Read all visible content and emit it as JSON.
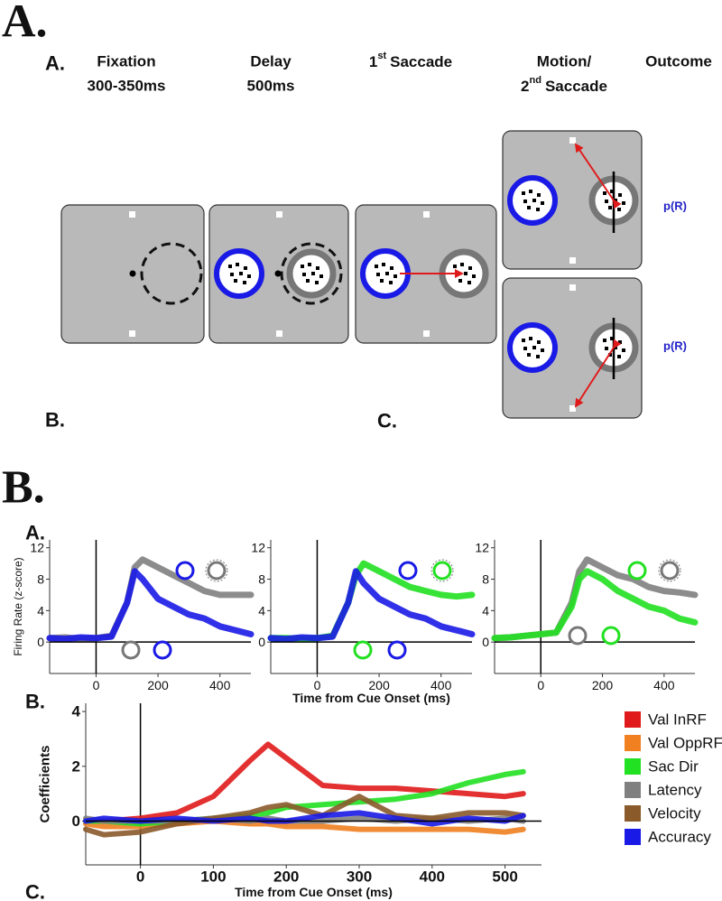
{
  "figure_labels": [
    "A.",
    "B."
  ],
  "task_diagram": {
    "panel_label": "A.",
    "epochs": [
      {
        "title": "Fixation",
        "subtitle": "300-350ms"
      },
      {
        "title": "Delay",
        "subtitle": "500ms"
      },
      {
        "ordinal": "1",
        "suffix": "st",
        "title": "Saccade"
      },
      {
        "title": "Motion/",
        "ordinal": "2",
        "suffix": "nd",
        "subtitle": "Saccade"
      },
      {
        "title": "Outcome"
      }
    ],
    "outcome_labels": [
      "p(R)",
      "p(R)"
    ],
    "sub_labels": [
      "B.",
      "C."
    ]
  },
  "results": {
    "panel_labels": [
      "A.",
      "B.",
      "C."
    ]
  },
  "chart_data": [
    {
      "type": "line",
      "ylabel": "Firing Rate (z-score)",
      "x": [
        -150,
        -100,
        -50,
        0,
        50,
        100,
        125,
        150,
        200,
        250,
        300,
        350,
        400,
        450,
        500
      ],
      "series": [
        {
          "color": "#808080",
          "values": [
            0.5,
            0.6,
            0.4,
            0.5,
            0.8,
            5,
            9.5,
            10.5,
            9.5,
            8.5,
            7.5,
            6.5,
            6,
            6,
            6
          ]
        },
        {
          "color": "#1a1ae6",
          "values": [
            0.5,
            0.4,
            0.6,
            0.5,
            0.7,
            5,
            9,
            8,
            5.5,
            4.5,
            3.5,
            3,
            2,
            1.5,
            1
          ]
        }
      ],
      "xlim": [
        -150,
        500
      ],
      "ylim": [
        -4,
        13
      ],
      "xticks": [
        0,
        200,
        400
      ],
      "yticks": [
        0,
        4,
        8,
        12
      ]
    },
    {
      "type": "line",
      "xlabel": "Time from Cue Onset (ms)",
      "x": [
        -150,
        -100,
        -50,
        0,
        50,
        100,
        125,
        150,
        200,
        250,
        300,
        350,
        400,
        450,
        500
      ],
      "series": [
        {
          "color": "#22e022",
          "values": [
            0.5,
            0.5,
            0.4,
            0.5,
            0.8,
            5,
            8.5,
            10,
            9,
            8,
            7,
            6.5,
            6,
            5.8,
            6
          ]
        },
        {
          "color": "#1a1ae6",
          "values": [
            0.5,
            0.4,
            0.6,
            0.5,
            0.7,
            5,
            9,
            7.5,
            5.5,
            4.5,
            3.5,
            3,
            2,
            1.5,
            1
          ]
        }
      ],
      "xlim": [
        -150,
        500
      ],
      "ylim": [
        -4,
        13
      ],
      "xticks": [
        0,
        200,
        400
      ],
      "yticks": [
        0,
        4,
        8,
        12
      ]
    },
    {
      "type": "line",
      "x": [
        -150,
        -100,
        -50,
        0,
        50,
        100,
        125,
        150,
        200,
        250,
        300,
        350,
        400,
        450,
        500
      ],
      "series": [
        {
          "color": "#808080",
          "values": [
            0.5,
            0.6,
            0.8,
            1,
            1.2,
            5,
            9,
            10.5,
            9.5,
            8.5,
            8,
            7,
            6.5,
            6.3,
            6
          ]
        },
        {
          "color": "#22e022",
          "values": [
            0.5,
            0.6,
            0.8,
            1,
            1.2,
            4.5,
            8,
            9,
            8,
            6.5,
            5.5,
            4.5,
            4,
            3,
            2.5
          ]
        }
      ],
      "xlim": [
        -150,
        500
      ],
      "ylim": [
        -4,
        13
      ],
      "xticks": [
        0,
        200,
        400
      ],
      "yticks": [
        0,
        4,
        8,
        12
      ]
    },
    {
      "type": "line",
      "ylabel": "Coefficients",
      "xlabel": "Time from Cue Onset (ms)",
      "legend": "right",
      "x": [
        -75,
        -50,
        0,
        50,
        100,
        150,
        175,
        200,
        250,
        300,
        350,
        400,
        450,
        500,
        525
      ],
      "series": [
        {
          "name": "Val InRF",
          "color": "#e01a1a",
          "values": [
            0,
            0,
            0.1,
            0.3,
            0.9,
            2.2,
            2.8,
            2.3,
            1.3,
            1.2,
            1.2,
            1.1,
            1,
            0.9,
            1
          ]
        },
        {
          "name": "Val OppRF",
          "color": "#f08020",
          "values": [
            -0.1,
            -0.2,
            -0.2,
            -0.1,
            0,
            -0.1,
            -0.1,
            -0.2,
            -0.2,
            -0.3,
            -0.3,
            -0.3,
            -0.3,
            -0.4,
            -0.3
          ]
        },
        {
          "name": "Sac Dir",
          "color": "#22e022",
          "values": [
            0,
            0,
            -0.1,
            0,
            0.1,
            0.2,
            0.3,
            0.5,
            0.6,
            0.7,
            0.8,
            1,
            1.4,
            1.7,
            1.8
          ]
        },
        {
          "name": "Latency",
          "color": "#808080",
          "values": [
            0.1,
            0,
            0,
            0,
            0.1,
            0,
            0.1,
            0,
            0,
            0.1,
            0,
            0.1,
            0,
            0.1,
            0
          ]
        },
        {
          "name": "Velocity",
          "color": "#8b5a2b",
          "values": [
            -0.3,
            -0.5,
            -0.4,
            -0.1,
            0.1,
            0.3,
            0.5,
            0.6,
            0.2,
            0.9,
            0.2,
            0.1,
            0.3,
            0.3,
            0.2
          ]
        },
        {
          "name": "Accuracy",
          "color": "#1a1ae6",
          "values": [
            0,
            0.1,
            0,
            0.1,
            0,
            0.1,
            0,
            0,
            0.2,
            0.3,
            0.1,
            -0.1,
            0.1,
            0,
            0.2
          ]
        }
      ],
      "xlim": [
        -75,
        550
      ],
      "ylim": [
        -1.6,
        4.3
      ],
      "xticks": [
        0,
        100,
        200,
        300,
        400,
        500
      ],
      "yticks": [
        0,
        2,
        4
      ]
    }
  ]
}
